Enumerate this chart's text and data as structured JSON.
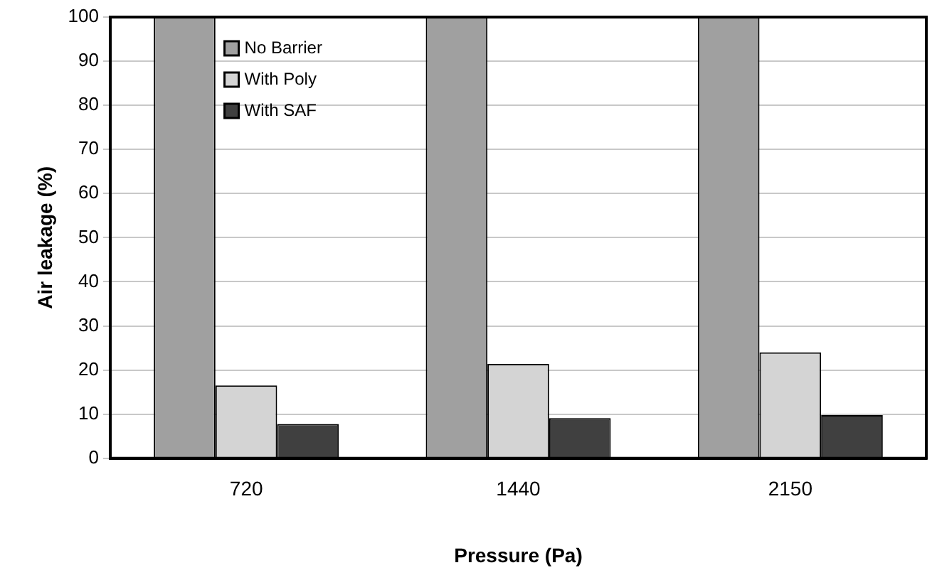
{
  "chart_data": {
    "type": "bar",
    "xlabel": "Pressure (Pa)",
    "ylabel": "Air leakage (%)",
    "categories": [
      "720",
      "1440",
      "2150"
    ],
    "series": [
      {
        "name": "No Barrier",
        "color": "#a0a0a0",
        "values": [
          100,
          100,
          100
        ]
      },
      {
        "name": "With Poly",
        "color": "#d4d4d4",
        "values": [
          16.5,
          21.4,
          24
        ]
      },
      {
        "name": "With SAF",
        "color": "#404040",
        "values": [
          7.8,
          9.1,
          9.8
        ]
      }
    ],
    "ylim": [
      0,
      100
    ],
    "yticks": [
      0,
      10,
      20,
      30,
      40,
      50,
      60,
      70,
      80,
      90,
      100
    ],
    "grid": "y",
    "legend": "top left"
  }
}
